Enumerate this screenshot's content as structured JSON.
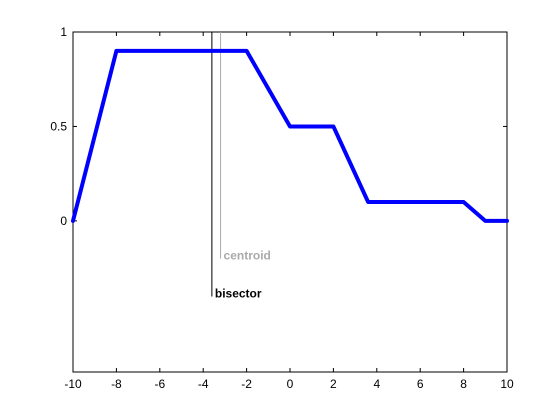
{
  "chart_data": {
    "type": "line",
    "xlim": [
      -10,
      10
    ],
    "ylim": [
      -0.8,
      1
    ],
    "x_ticks": [
      -10,
      -8,
      -6,
      -4,
      -2,
      0,
      2,
      4,
      6,
      8,
      10
    ],
    "y_ticks": [
      0,
      0.5,
      1
    ],
    "x_tick_labels": [
      "-10",
      "-8",
      "-6",
      "-4",
      "-2",
      "0",
      "2",
      "4",
      "6",
      "8",
      "10"
    ],
    "y_tick_labels": [
      "0",
      "0.5",
      "1"
    ],
    "grid": false,
    "series": [
      {
        "color": "#0000ff",
        "x": [
          -10,
          -8,
          -2,
          0,
          2,
          3.6,
          8,
          9,
          10
        ],
        "y": [
          0,
          0.9,
          0.9,
          0.5,
          0.5,
          0.1,
          0.1,
          0,
          0
        ]
      }
    ],
    "annotations": [
      {
        "label": "bisector",
        "x": -3.6,
        "y_top": 1,
        "y_bottom": -0.4,
        "color": "#000000"
      },
      {
        "label": "centroid",
        "x": -3.2,
        "y_top": 1,
        "y_bottom": -0.2,
        "color": "#aaaaaa"
      }
    ]
  }
}
